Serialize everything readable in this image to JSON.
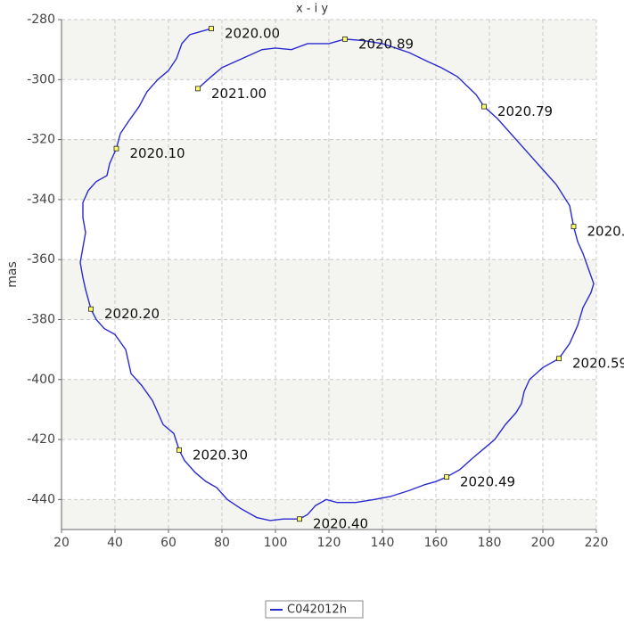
{
  "chart_data": {
    "type": "line",
    "title": "x - i y",
    "y_label": "mas",
    "xlim": [
      20,
      220
    ],
    "ylim": [
      -450,
      -280
    ],
    "xticks": [
      20,
      40,
      60,
      80,
      100,
      120,
      140,
      160,
      180,
      200,
      220
    ],
    "yticks": [
      -280,
      -300,
      -320,
      -340,
      -360,
      -380,
      -400,
      -420,
      -440
    ],
    "grid": true,
    "legend": "bottom",
    "series": [
      {
        "name": "C042012h",
        "color": "#2a2ad0",
        "x": [
          76,
          72,
          68,
          65,
          63,
          60,
          56,
          52,
          49,
          45,
          42,
          40.5,
          38,
          37,
          33,
          30,
          28,
          28,
          29,
          28,
          27,
          28,
          29,
          31,
          33,
          36,
          40,
          44,
          45,
          46,
          50,
          54,
          56,
          58,
          62,
          64,
          66,
          70,
          74,
          78,
          82,
          87,
          93,
          98,
          103,
          109,
          112,
          115,
          119,
          123,
          130,
          137,
          143,
          150,
          156,
          160,
          164,
          169,
          174,
          178,
          182,
          186,
          190,
          192,
          193,
          195,
          200,
          206,
          210,
          213,
          215,
          218,
          219,
          217,
          215,
          213,
          211.5,
          210,
          205,
          200,
          194,
          188,
          183,
          178,
          175,
          168,
          162,
          157,
          150,
          140,
          133,
          126,
          120,
          112,
          106,
          100,
          95,
          90,
          85,
          80,
          76,
          71
        ],
        "values": [
          -283,
          -284,
          -285,
          -288,
          -293,
          -297,
          -300,
          -304,
          -309,
          -314,
          -318,
          -323,
          -328,
          -332,
          -334,
          -337,
          -341,
          -346,
          -351,
          -356,
          -361,
          -366,
          -370,
          -376.5,
          -380,
          -383,
          -385,
          -390,
          -394,
          -398,
          -402,
          -407,
          -411,
          -415,
          -418,
          -423.5,
          -427,
          -431,
          -434,
          -436,
          -440,
          -443,
          -446,
          -447,
          -446.5,
          -446.5,
          -445,
          -442,
          -440,
          -441,
          -441,
          -440,
          -439,
          -437,
          -435,
          -434,
          -432.5,
          -430,
          -426,
          -423,
          -420,
          -415,
          -411,
          -408,
          -404,
          -400,
          -396,
          -393,
          -388,
          -382,
          -376,
          -371,
          -368,
          -363,
          -358,
          -354,
          -349,
          -342,
          -335,
          -330,
          -324,
          -318,
          -313,
          -309,
          -305,
          -299,
          -296,
          -294,
          -291,
          -288,
          -287,
          -286.5,
          -288,
          -288,
          -290,
          -289.5,
          -290,
          -292,
          -294,
          -296,
          -299,
          -303
        ]
      }
    ],
    "annotations": [
      {
        "x": 76,
        "y": -283,
        "text": "2020.00"
      },
      {
        "x": 40.5,
        "y": -323,
        "text": "2020.10"
      },
      {
        "x": 31,
        "y": -376.5,
        "text": "2020.20"
      },
      {
        "x": 64,
        "y": -423.5,
        "text": "2020.30"
      },
      {
        "x": 109,
        "y": -446.5,
        "text": "2020.40"
      },
      {
        "x": 164,
        "y": -432.5,
        "text": "2020.49"
      },
      {
        "x": 206,
        "y": -393,
        "text": "2020.59"
      },
      {
        "x": 211.5,
        "y": -349,
        "text": "2020."
      },
      {
        "x": 178,
        "y": -309,
        "text": "2020.79"
      },
      {
        "x": 126,
        "y": -286.5,
        "text": "2020.89"
      },
      {
        "x": 71,
        "y": -303,
        "text": "2021.00"
      }
    ]
  }
}
